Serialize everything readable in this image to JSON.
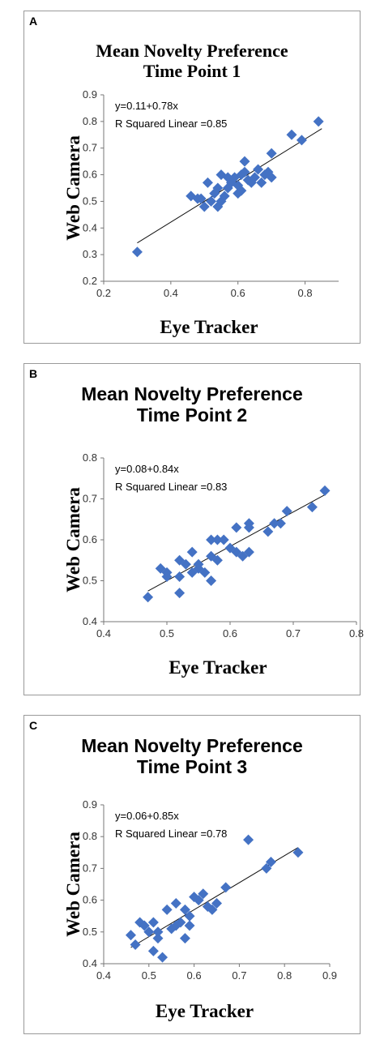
{
  "panels": [
    {
      "letter": "A",
      "title_lines": [
        "Mean Novelty Preference",
        "Time Point 1"
      ],
      "equation": "y=0.11+0.78x",
      "r_squared": "R Squared Linear =0.85",
      "chart_data": {
        "type": "scatter",
        "xlabel": "Eye Tracker",
        "ylabel": "Web Camera",
        "xlim": [
          0.2,
          0.9
        ],
        "ylim": [
          0.2,
          0.9
        ],
        "xticks": [
          "0.2",
          "0.4",
          "0.6",
          "0.8"
        ],
        "yticks": [
          "0.2",
          "0.3",
          "0.4",
          "0.5",
          "0.6",
          "0.7",
          "0.8",
          "0.9"
        ],
        "marker_color": "#4472C4",
        "fit": {
          "intercept": 0.11,
          "slope": 0.78,
          "x_range": [
            0.3,
            0.85
          ]
        },
        "points": [
          [
            0.3,
            0.31
          ],
          [
            0.46,
            0.52
          ],
          [
            0.48,
            0.51
          ],
          [
            0.49,
            0.51
          ],
          [
            0.5,
            0.48
          ],
          [
            0.51,
            0.57
          ],
          [
            0.52,
            0.5
          ],
          [
            0.53,
            0.53
          ],
          [
            0.54,
            0.48
          ],
          [
            0.54,
            0.55
          ],
          [
            0.55,
            0.5
          ],
          [
            0.55,
            0.6
          ],
          [
            0.56,
            0.52
          ],
          [
            0.57,
            0.59
          ],
          [
            0.57,
            0.55
          ],
          [
            0.58,
            0.57
          ],
          [
            0.59,
            0.59
          ],
          [
            0.6,
            0.56
          ],
          [
            0.6,
            0.53
          ],
          [
            0.61,
            0.54
          ],
          [
            0.61,
            0.6
          ],
          [
            0.62,
            0.65
          ],
          [
            0.62,
            0.61
          ],
          [
            0.63,
            0.58
          ],
          [
            0.64,
            0.57
          ],
          [
            0.65,
            0.59
          ],
          [
            0.66,
            0.62
          ],
          [
            0.67,
            0.57
          ],
          [
            0.68,
            0.6
          ],
          [
            0.69,
            0.61
          ],
          [
            0.7,
            0.59
          ],
          [
            0.7,
            0.68
          ],
          [
            0.76,
            0.75
          ],
          [
            0.79,
            0.73
          ],
          [
            0.84,
            0.8
          ]
        ]
      }
    },
    {
      "letter": "B",
      "title_lines": [
        "Mean Novelty Preference",
        "Time Point 2"
      ],
      "equation": "y=0.08+0.84x",
      "r_squared": "R Squared Linear =0.83",
      "chart_data": {
        "type": "scatter",
        "xlabel": "Eye Tracker",
        "ylabel": "Web Camera",
        "xlim": [
          0.4,
          0.8
        ],
        "ylim": [
          0.4,
          0.8
        ],
        "xticks": [
          "0.4",
          "0.5",
          "0.6",
          "0.7",
          "0.8"
        ],
        "yticks": [
          "0.4",
          "0.5",
          "0.6",
          "0.7",
          "0.8"
        ],
        "marker_color": "#4472C4",
        "fit": {
          "intercept": 0.08,
          "slope": 0.84,
          "x_range": [
            0.47,
            0.75
          ]
        },
        "points": [
          [
            0.47,
            0.46
          ],
          [
            0.49,
            0.53
          ],
          [
            0.5,
            0.52
          ],
          [
            0.5,
            0.51
          ],
          [
            0.52,
            0.47
          ],
          [
            0.52,
            0.51
          ],
          [
            0.52,
            0.55
          ],
          [
            0.53,
            0.54
          ],
          [
            0.54,
            0.57
          ],
          [
            0.54,
            0.52
          ],
          [
            0.55,
            0.53
          ],
          [
            0.55,
            0.54
          ],
          [
            0.56,
            0.52
          ],
          [
            0.57,
            0.5
          ],
          [
            0.57,
            0.56
          ],
          [
            0.57,
            0.6
          ],
          [
            0.58,
            0.55
          ],
          [
            0.58,
            0.6
          ],
          [
            0.59,
            0.6
          ],
          [
            0.6,
            0.58
          ],
          [
            0.61,
            0.63
          ],
          [
            0.61,
            0.57
          ],
          [
            0.62,
            0.56
          ],
          [
            0.63,
            0.63
          ],
          [
            0.63,
            0.64
          ],
          [
            0.63,
            0.57
          ],
          [
            0.66,
            0.62
          ],
          [
            0.67,
            0.64
          ],
          [
            0.68,
            0.64
          ],
          [
            0.69,
            0.67
          ],
          [
            0.73,
            0.68
          ],
          [
            0.75,
            0.72
          ]
        ]
      }
    },
    {
      "letter": "C",
      "title_lines": [
        "Mean Novelty Preference",
        "Time Point 3"
      ],
      "equation": "y=0.06+0.85x",
      "r_squared": "R Squared Linear =0.78",
      "chart_data": {
        "type": "scatter",
        "xlabel": "Eye Tracker",
        "ylabel": "Web Camera",
        "xlim": [
          0.4,
          0.9
        ],
        "ylim": [
          0.4,
          0.9
        ],
        "xticks": [
          "0.4",
          "0.5",
          "0.6",
          "0.7",
          "0.8",
          "0.9"
        ],
        "yticks": [
          "0.4",
          "0.5",
          "0.6",
          "0.7",
          "0.8",
          "0.9"
        ],
        "marker_color": "#4472C4",
        "fit": {
          "intercept": 0.06,
          "slope": 0.85,
          "x_range": [
            0.46,
            0.83
          ]
        },
        "points": [
          [
            0.46,
            0.49
          ],
          [
            0.47,
            0.46
          ],
          [
            0.48,
            0.53
          ],
          [
            0.49,
            0.52
          ],
          [
            0.5,
            0.5
          ],
          [
            0.51,
            0.53
          ],
          [
            0.51,
            0.44
          ],
          [
            0.52,
            0.48
          ],
          [
            0.52,
            0.5
          ],
          [
            0.53,
            0.42
          ],
          [
            0.54,
            0.57
          ],
          [
            0.55,
            0.51
          ],
          [
            0.56,
            0.52
          ],
          [
            0.56,
            0.59
          ],
          [
            0.57,
            0.53
          ],
          [
            0.58,
            0.48
          ],
          [
            0.58,
            0.57
          ],
          [
            0.59,
            0.55
          ],
          [
            0.59,
            0.52
          ],
          [
            0.6,
            0.61
          ],
          [
            0.61,
            0.6
          ],
          [
            0.62,
            0.62
          ],
          [
            0.63,
            0.58
          ],
          [
            0.64,
            0.57
          ],
          [
            0.65,
            0.59
          ],
          [
            0.67,
            0.64
          ],
          [
            0.72,
            0.79
          ],
          [
            0.76,
            0.7
          ],
          [
            0.77,
            0.72
          ],
          [
            0.83,
            0.75
          ]
        ]
      }
    }
  ]
}
